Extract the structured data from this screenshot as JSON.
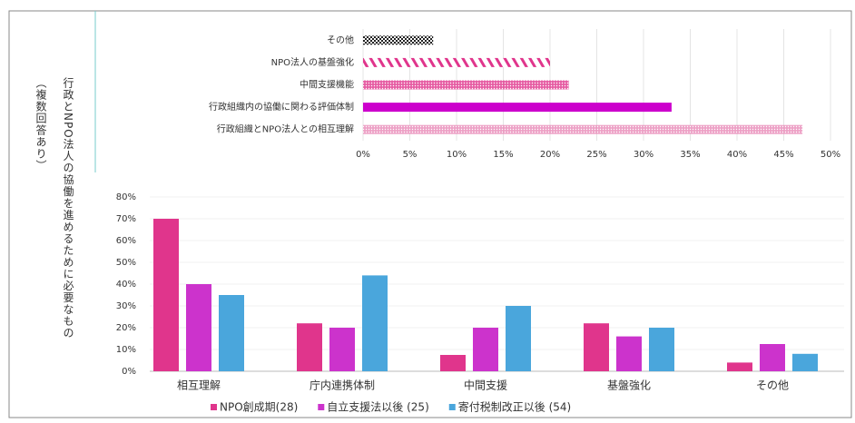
{
  "label": "行政とNPO法人の協働を進めるために必要なもの（複数回答あり）",
  "chart_data": [
    {
      "type": "hbar",
      "categories": [
        "その他",
        "NPO法人の基盤強化",
        "中間支援機能",
        "行政組織内の協働に関わる評価体制",
        "行政組織とNPO法人との相互理解"
      ],
      "values": [
        7.5,
        20,
        22,
        33,
        47
      ],
      "colors": [
        "#222222",
        "#e0358c",
        "#e0358c",
        "#cc00cc",
        "#e88ab8"
      ],
      "patterns": [
        "checker",
        "diagonal",
        "dots",
        "solid",
        "dots"
      ],
      "xlim": [
        0,
        50
      ],
      "xticks": [
        {
          "value": 0,
          "label": "0%"
        },
        {
          "value": 5,
          "label": "5%"
        },
        {
          "value": 10,
          "label": "10%"
        },
        {
          "value": 15,
          "label": "15%"
        },
        {
          "value": 20,
          "label": "20%"
        },
        {
          "value": 25,
          "label": "25%"
        },
        {
          "value": 30,
          "label": "30%"
        },
        {
          "value": 35,
          "label": "35%"
        },
        {
          "value": 40,
          "label": "40%"
        },
        {
          "value": 45,
          "label": "45%"
        },
        {
          "value": 50,
          "label": "50%"
        }
      ],
      "grid": true
    },
    {
      "type": "bar",
      "categories": [
        "相互理解",
        "庁内連携体制",
        "中間支援",
        "基盤強化",
        "その他"
      ],
      "series": [
        {
          "name": "NPO創成期(28)",
          "color": "#e0358c",
          "values": [
            70,
            22,
            7.5,
            22,
            4
          ]
        },
        {
          "name": "自立支援法以後 (25)",
          "color": "#cc33cc",
          "values": [
            40,
            20,
            20,
            16,
            12.5
          ]
        },
        {
          "name": "寄付税制改正以後 (54)",
          "color": "#4aa6dc",
          "values": [
            35,
            44,
            30,
            20,
            8
          ]
        }
      ],
      "ylim": [
        0,
        80
      ],
      "yticks": [
        {
          "value": 0,
          "label": "0%"
        },
        {
          "value": 10,
          "label": "10%"
        },
        {
          "value": 20,
          "label": "20%"
        },
        {
          "value": 30,
          "label": "30%"
        },
        {
          "value": 40,
          "label": "40%"
        },
        {
          "value": 50,
          "label": "50%"
        },
        {
          "value": 60,
          "label": "60%"
        },
        {
          "value": 70,
          "label": "70%"
        },
        {
          "value": 80,
          "label": "80%"
        }
      ],
      "grid": true
    }
  ]
}
